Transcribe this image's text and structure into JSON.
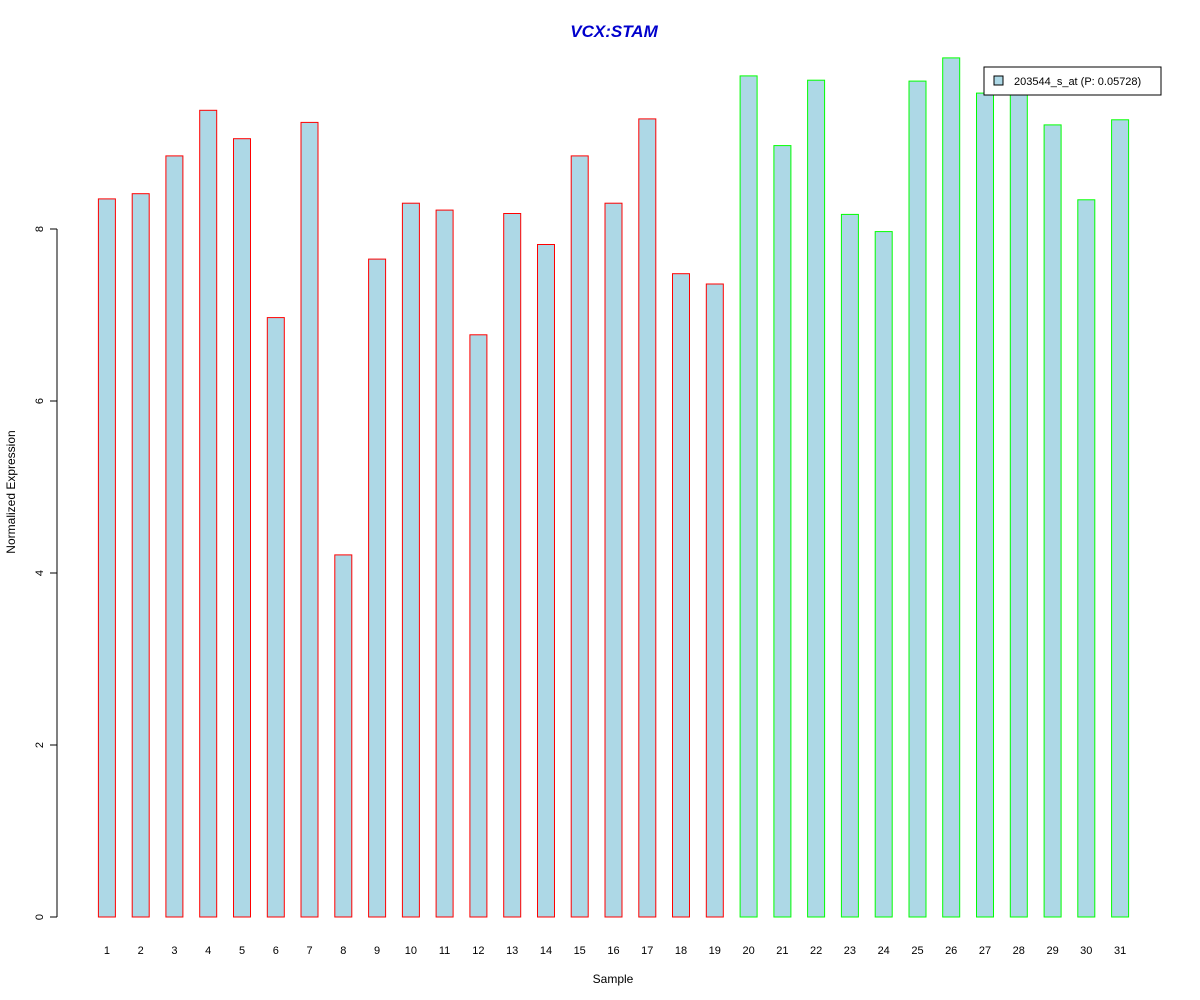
{
  "chart_data": {
    "type": "bar",
    "title": "VCX:STAM",
    "xlabel": "Sample",
    "ylabel": "Normalized Expression",
    "ylim": [
      0,
      10
    ],
    "yticks": [
      0,
      2,
      4,
      6,
      8
    ],
    "grid": false,
    "legend_position": "top-right",
    "categories": [
      "1",
      "2",
      "3",
      "4",
      "5",
      "6",
      "7",
      "8",
      "9",
      "10",
      "11",
      "12",
      "13",
      "14",
      "15",
      "16",
      "17",
      "18",
      "19",
      "20",
      "21",
      "22",
      "23",
      "24",
      "25",
      "26",
      "27",
      "28",
      "29",
      "30",
      "31"
    ],
    "series": [
      {
        "name": "203544_s_at (P: 0.05728)",
        "values": [
          8.35,
          8.41,
          8.85,
          9.38,
          9.05,
          6.97,
          9.24,
          4.21,
          7.65,
          8.3,
          8.22,
          6.77,
          8.18,
          7.82,
          8.85,
          8.3,
          9.28,
          7.48,
          7.36,
          9.78,
          8.97,
          9.73,
          8.17,
          7.97,
          9.72,
          9.99,
          9.58,
          9.56,
          9.21,
          8.34,
          9.27
        ],
        "fill_color": "#add8e6"
      }
    ],
    "bar_border_colors": [
      "#ff0000",
      "#ff0000",
      "#ff0000",
      "#ff0000",
      "#ff0000",
      "#ff0000",
      "#ff0000",
      "#ff0000",
      "#ff0000",
      "#ff0000",
      "#ff0000",
      "#ff0000",
      "#ff0000",
      "#ff0000",
      "#ff0000",
      "#ff0000",
      "#ff0000",
      "#ff0000",
      "#ff0000",
      "#00ff00",
      "#00ff00",
      "#00ff00",
      "#00ff00",
      "#00ff00",
      "#00ff00",
      "#00ff00",
      "#00ff00",
      "#00ff00",
      "#00ff00",
      "#00ff00",
      "#00ff00"
    ],
    "title_color": "#0000cc"
  }
}
